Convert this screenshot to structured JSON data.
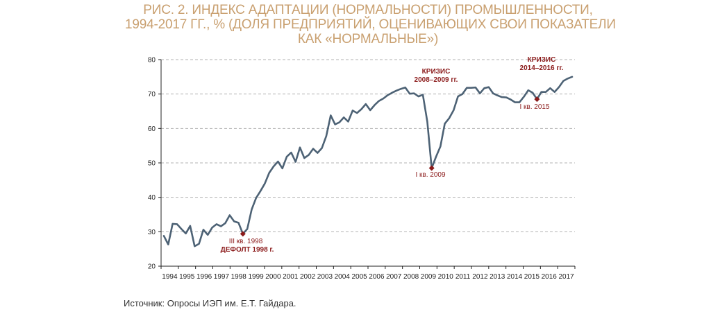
{
  "title": {
    "line1": "РИС. 2. ИНДЕКС АДАПТАЦИИ (НОРМАЛЬНОСТИ) ПРОМЫШЛЕННОСТИ,",
    "line2": "1994-2017 ГГ., % (ДОЛЯ ПРЕДПРИЯТИЙ, ОЦЕНИВАЮЩИХ СВОИ ПОКАЗАТЕЛИ",
    "line3": "КАК «НОРМАЛЬНЫЕ»)"
  },
  "source": "Источник: Опросы ИЭП им. Е.Т. Гайдара.",
  "colors": {
    "line": "#4d6275",
    "marker": "#8b1a1a",
    "grid": "#b0b0b0",
    "title": "#c9a070"
  },
  "chart_data": {
    "type": "line",
    "ylim": [
      20,
      80
    ],
    "yticks": [
      "20",
      "30",
      "40",
      "50",
      "60",
      "70",
      "80"
    ],
    "xticks": [
      "1994",
      "1995",
      "1996",
      "1997",
      "1998",
      "1999",
      "2000",
      "2001",
      "2002",
      "2003",
      "2004",
      "2005",
      "2006",
      "2007",
      "2008",
      "2009",
      "2010",
      "2011",
      "2012",
      "2013",
      "2014",
      "2015",
      "2016",
      "2017"
    ],
    "grid": true,
    "series": [
      {
        "values": [
          28.8,
          26.3,
          32.3,
          32.2,
          30.8,
          29.5,
          31.7,
          25.8,
          26.5,
          30.6,
          29.1,
          31.2,
          32.2,
          31.6,
          32.5,
          34.8,
          33.0,
          32.6,
          29.4,
          30.8,
          36.5,
          39.8,
          41.8,
          44.0,
          47.1,
          49.0,
          50.4,
          48.4,
          51.8,
          53.0,
          50.3,
          54.5,
          51.4,
          52.3,
          54.1,
          52.9,
          54.3,
          57.8,
          63.8,
          61.2,
          61.8,
          63.2,
          62.0,
          65.2,
          64.5,
          65.6,
          67.1,
          65.3,
          66.8,
          68.0,
          68.7,
          69.7,
          70.4,
          71.0,
          71.5,
          71.9,
          70.1,
          70.2,
          69.3,
          69.8,
          62.0,
          48.5,
          51.8,
          54.8,
          61.4,
          63.0,
          65.3,
          69.3,
          70.0,
          71.8,
          71.8,
          71.9,
          70.2,
          71.7,
          72.0,
          70.2,
          69.6,
          69.1,
          69.0,
          68.4,
          67.6,
          67.6,
          69.2,
          71.1,
          70.4,
          68.5,
          70.6,
          70.6,
          71.7,
          70.6,
          72.0,
          73.8,
          74.5,
          75.0
        ]
      }
    ],
    "markers": [
      {
        "index": 18,
        "value": 29.4
      },
      {
        "index": 61,
        "value": 48.5
      },
      {
        "index": 85,
        "value": 68.5
      }
    ],
    "annotations": {
      "default_quarter": "III кв. 1998",
      "default_label": "ДЕФОЛТ 1998 г.",
      "crisis2009_l1": "КРИЗИС",
      "crisis2009_l2": "2008–2009 гг.",
      "q2009": "I кв. 2009",
      "crisis2014_l1": "КРИЗИС",
      "crisis2014_l2": "2014–2016 гг.",
      "q2015": "I кв. 2015"
    }
  }
}
